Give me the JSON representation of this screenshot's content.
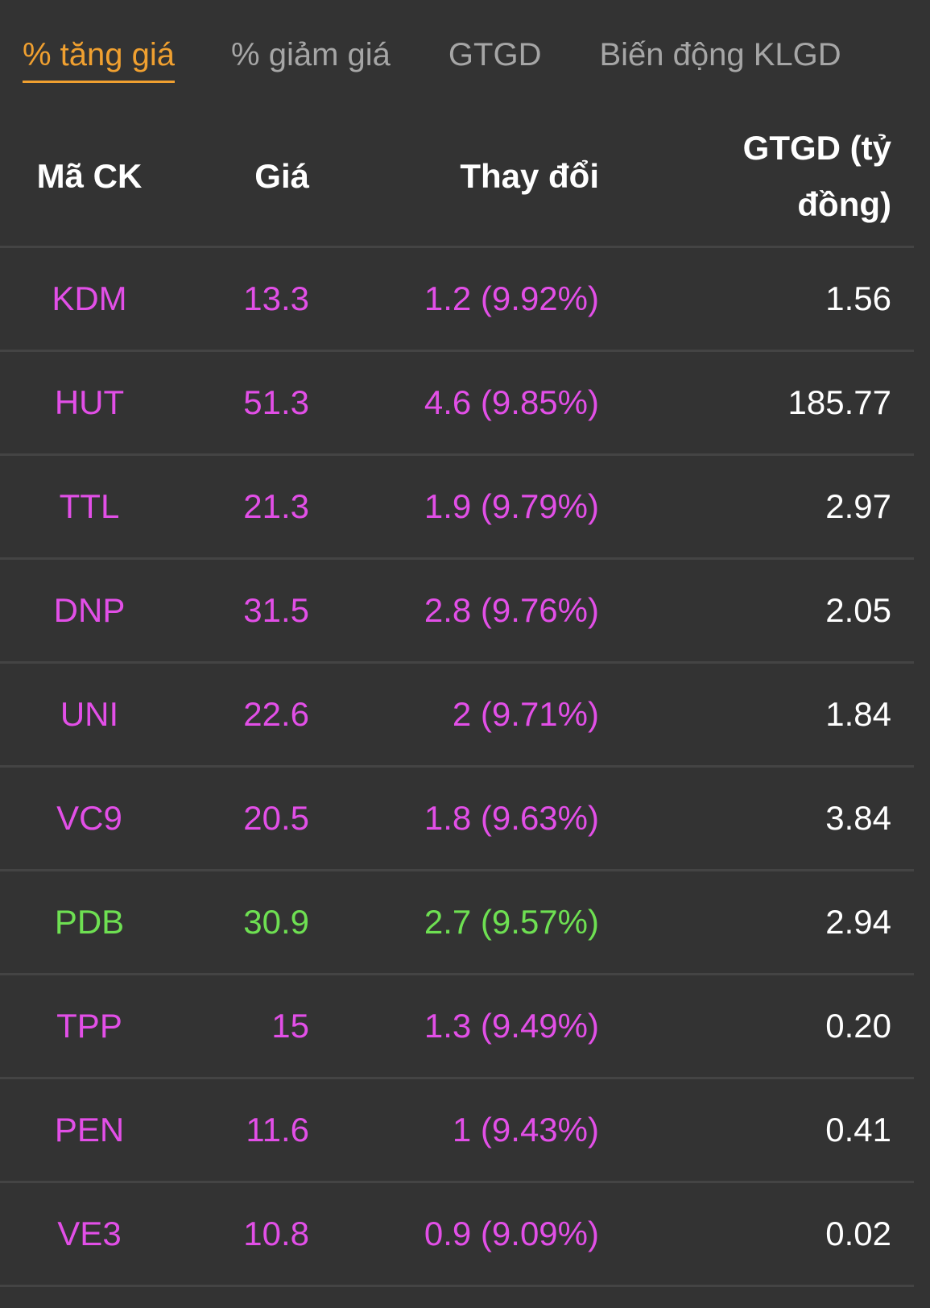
{
  "tabs": [
    {
      "label": "% tăng giá",
      "active": true
    },
    {
      "label": "% giảm giá",
      "active": false
    },
    {
      "label": "GTGD",
      "active": false
    },
    {
      "label": "Biến động KLGD",
      "active": false
    }
  ],
  "table": {
    "headers": {
      "code": "Mã CK",
      "price": "Giá",
      "change": "Thay đổi",
      "value_line1": "GTGD (tỷ",
      "value_line2": "đồng)"
    },
    "rows": [
      {
        "code": "KDM",
        "price": "13.3",
        "change": "1.2 (9.92%)",
        "value": "1.56",
        "color": "purple"
      },
      {
        "code": "HUT",
        "price": "51.3",
        "change": "4.6 (9.85%)",
        "value": "185.77",
        "color": "purple"
      },
      {
        "code": "TTL",
        "price": "21.3",
        "change": "1.9 (9.79%)",
        "value": "2.97",
        "color": "purple"
      },
      {
        "code": "DNP",
        "price": "31.5",
        "change": "2.8 (9.76%)",
        "value": "2.05",
        "color": "purple"
      },
      {
        "code": "UNI",
        "price": "22.6",
        "change": "2 (9.71%)",
        "value": "1.84",
        "color": "purple"
      },
      {
        "code": "VC9",
        "price": "20.5",
        "change": "1.8 (9.63%)",
        "value": "3.84",
        "color": "purple"
      },
      {
        "code": "PDB",
        "price": "30.9",
        "change": "2.7 (9.57%)",
        "value": "2.94",
        "color": "green"
      },
      {
        "code": "TPP",
        "price": "15",
        "change": "1.3 (9.49%)",
        "value": "0.20",
        "color": "purple"
      },
      {
        "code": "PEN",
        "price": "11.6",
        "change": "1 (9.43%)",
        "value": "0.41",
        "color": "purple"
      },
      {
        "code": "VE3",
        "price": "10.8",
        "change": "0.9 (9.09%)",
        "value": "0.02",
        "color": "purple"
      }
    ]
  },
  "colors": {
    "background": "#333333",
    "accent": "#f0a030",
    "ceiling": "#e24fe7",
    "up": "#6ee052"
  }
}
